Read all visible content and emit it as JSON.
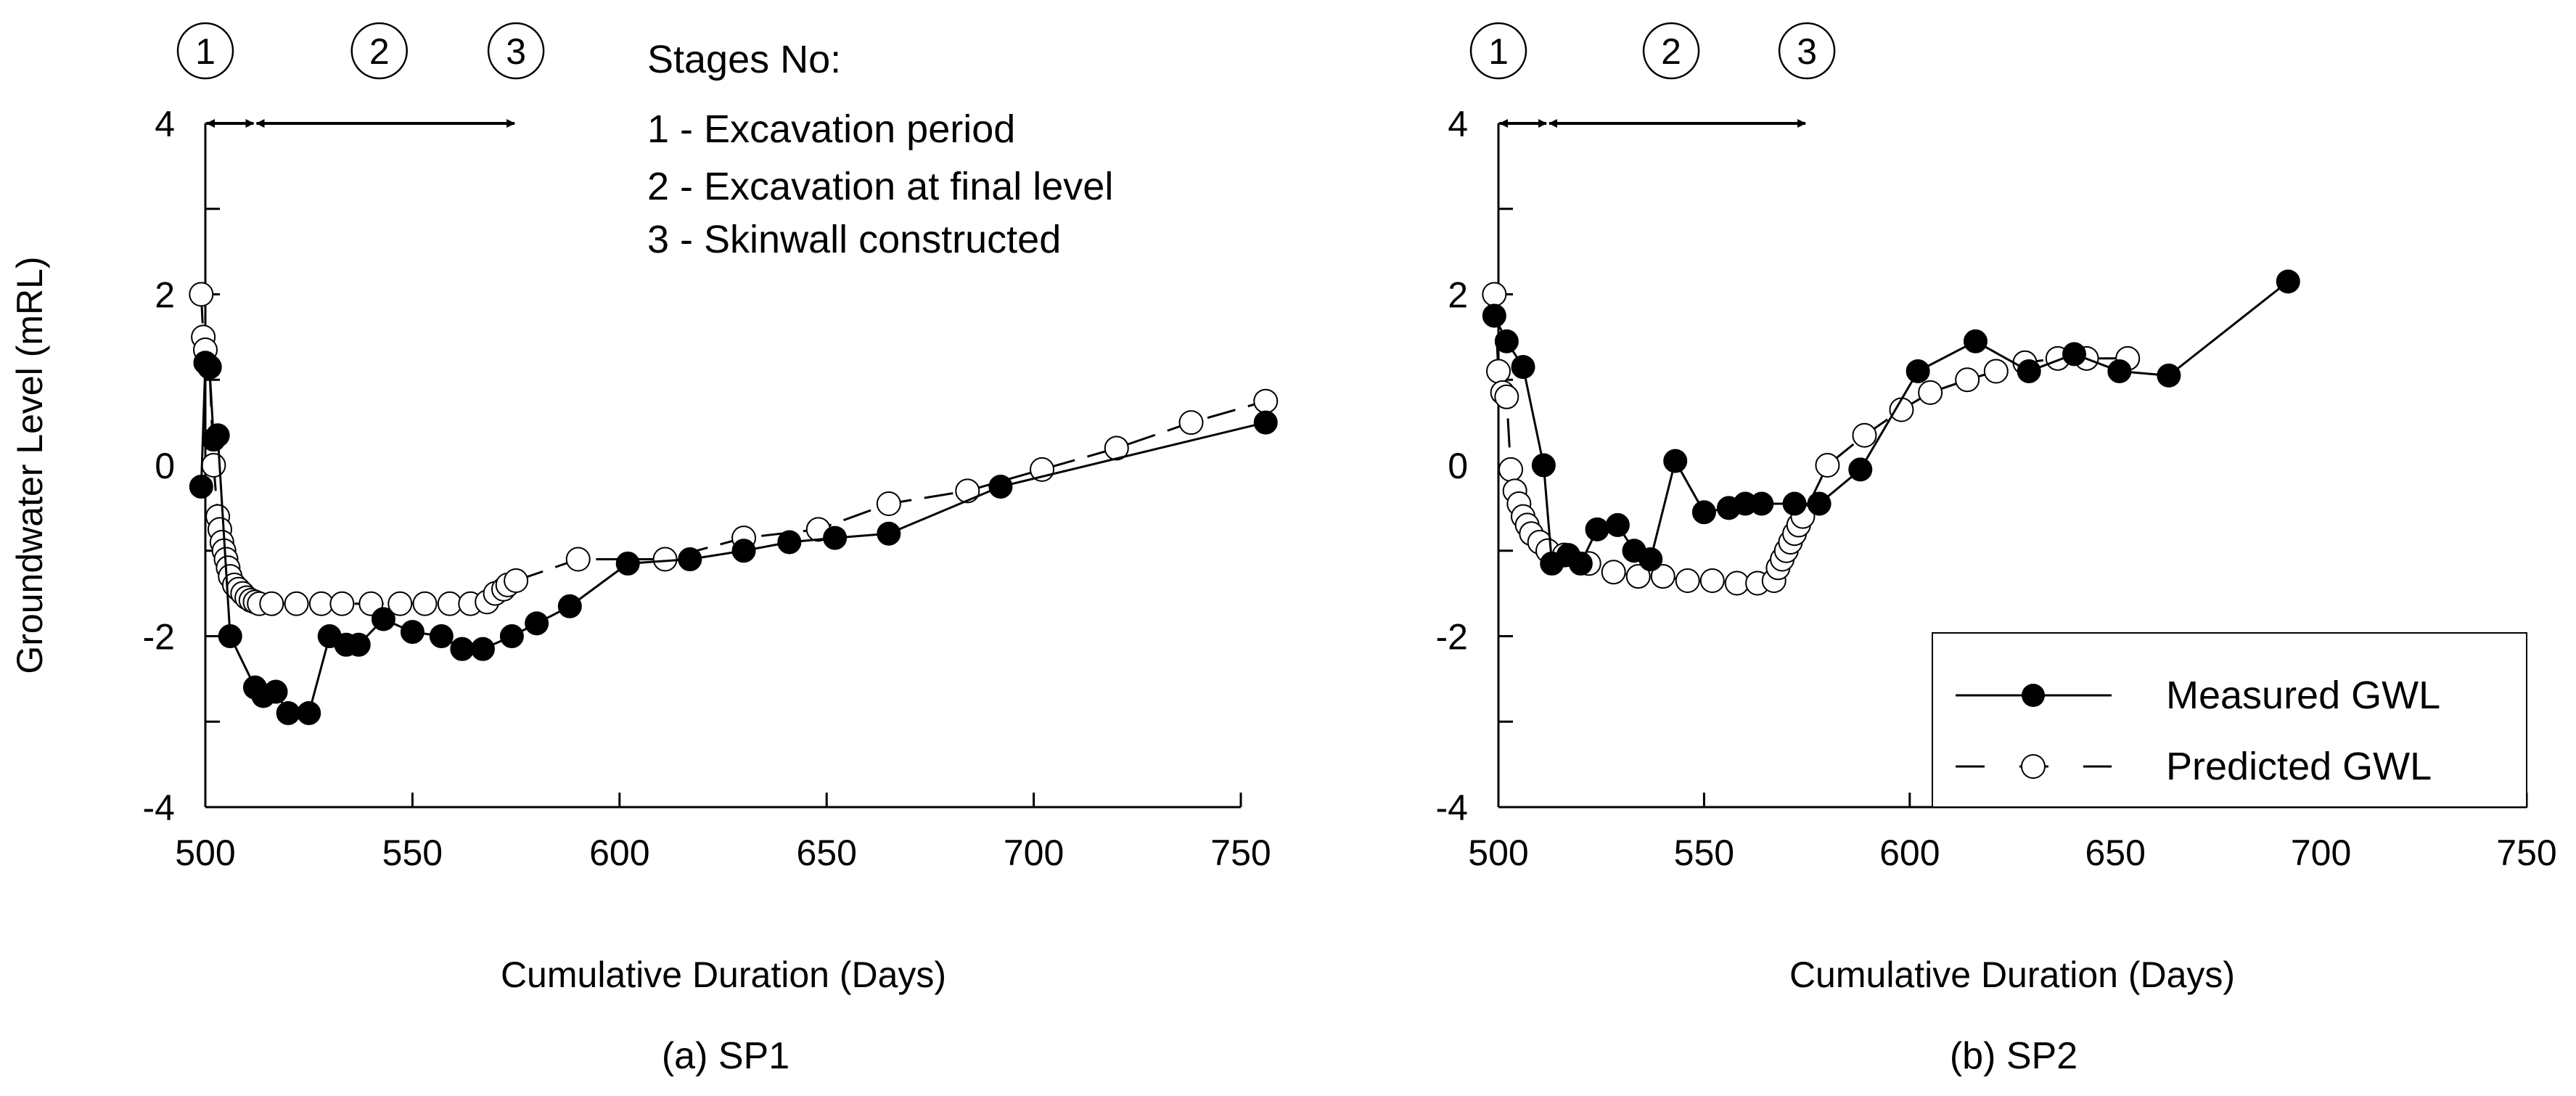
{
  "chart_data": [
    {
      "type": "line",
      "panel_id": "sp1",
      "caption": "(a) SP1",
      "xlabel": "Cumulative Duration (Days)",
      "ylabel": "Groundwater Level (mRL)",
      "xlim": [
        500,
        750
      ],
      "ylim": [
        -4,
        4
      ],
      "xticks": [
        "500",
        "550",
        "600",
        "650",
        "700",
        "750"
      ],
      "yticks": [
        "4",
        "2",
        "0",
        "-2",
        "-4"
      ],
      "stage_markers": [
        {
          "label": "1",
          "day": 500
        },
        {
          "label": "2",
          "day": 542
        },
        {
          "label": "3",
          "day": 575
        }
      ],
      "stage_arrows": [
        {
          "from": 500,
          "to": 512
        },
        {
          "from": 512,
          "to": 575
        }
      ],
      "stages_title": "Stages No:",
      "stages_text": [
        "1 - Excavation period",
        "2 - Excavation at final level",
        "3 - Skinwall constructed"
      ],
      "series": [
        {
          "name": "Measured GWL",
          "marker": "filled-circle",
          "line": "solid",
          "x": [
            499,
            500,
            501,
            502,
            503,
            506,
            512,
            514,
            517,
            520,
            525,
            530,
            534,
            537,
            543,
            550,
            557,
            562,
            567,
            574,
            580,
            588,
            602,
            617,
            630,
            641,
            652,
            665,
            692,
            756
          ],
          "y": [
            -0.25,
            1.2,
            1.15,
            0.3,
            0.35,
            -2.0,
            -2.6,
            -2.7,
            -2.65,
            -2.9,
            -2.9,
            -2.0,
            -2.1,
            -2.1,
            -1.8,
            -1.95,
            -2.0,
            -2.15,
            -2.15,
            -2.0,
            -1.85,
            -1.65,
            -1.15,
            -1.1,
            -1.0,
            -0.9,
            -0.85,
            -0.8,
            -0.25,
            0.5
          ]
        },
        {
          "name": "Predicted GWL",
          "marker": "open-circle",
          "line": "dashed",
          "x": [
            499,
            499.5,
            500,
            501,
            502,
            503,
            503.5,
            504,
            504.5,
            505,
            505.5,
            506,
            507,
            508,
            509,
            510,
            511,
            512,
            513,
            516,
            522,
            528,
            533,
            540,
            547,
            553,
            559,
            564,
            568,
            570,
            572,
            573,
            575,
            590,
            611,
            630,
            648,
            665,
            684,
            702,
            720,
            738,
            756
          ],
          "y": [
            2.0,
            1.5,
            1.35,
            1.15,
            0.0,
            -0.6,
            -0.75,
            -0.9,
            -1.0,
            -1.1,
            -1.2,
            -1.3,
            -1.4,
            -1.45,
            -1.5,
            -1.55,
            -1.58,
            -1.6,
            -1.62,
            -1.62,
            -1.62,
            -1.62,
            -1.62,
            -1.62,
            -1.62,
            -1.62,
            -1.62,
            -1.62,
            -1.6,
            -1.5,
            -1.45,
            -1.4,
            -1.35,
            -1.1,
            -1.1,
            -0.85,
            -0.75,
            -0.45,
            -0.3,
            -0.05,
            0.2,
            0.5,
            0.75
          ]
        }
      ]
    },
    {
      "type": "line",
      "panel_id": "sp2",
      "caption": "(b) SP2",
      "xlabel": "Cumulative Duration (Days)",
      "ylabel": "",
      "xlim": [
        500,
        750
      ],
      "ylim": [
        -4,
        4
      ],
      "xticks": [
        "500",
        "550",
        "600",
        "650",
        "700",
        "750"
      ],
      "yticks": [
        "4",
        "2",
        "0",
        "-2",
        "-4"
      ],
      "stage_markers": [
        {
          "label": "1",
          "day": 500
        },
        {
          "label": "2",
          "day": 542
        },
        {
          "label": "3",
          "day": 575
        }
      ],
      "stage_arrows": [
        {
          "from": 500,
          "to": 512
        },
        {
          "from": 512,
          "to": 575
        }
      ],
      "legend_position": "bottom-right",
      "series": [
        {
          "name": "Measured GWL",
          "marker": "filled-circle",
          "line": "solid",
          "x": [
            499,
            502,
            506,
            511,
            513,
            517,
            520,
            524,
            529,
            533,
            537,
            543,
            550,
            556,
            560,
            564,
            572,
            578,
            588,
            602,
            616,
            629,
            640,
            651,
            663,
            692
          ],
          "y": [
            1.75,
            1.45,
            1.15,
            0.0,
            -1.15,
            -1.05,
            -1.15,
            -0.75,
            -0.7,
            -1.0,
            -1.1,
            0.05,
            -0.55,
            -0.5,
            -0.45,
            -0.45,
            -0.45,
            -0.45,
            -0.05,
            1.1,
            1.45,
            1.1,
            1.3,
            1.1,
            1.05,
            2.15
          ]
        },
        {
          "name": "Predicted GWL",
          "marker": "open-circle",
          "line": "dashed",
          "x": [
            499,
            500,
            501,
            502,
            503,
            504,
            505,
            506,
            507,
            508,
            510,
            512,
            516,
            522,
            528,
            534,
            540,
            546,
            552,
            558,
            563,
            567,
            568,
            569,
            570,
            571,
            572,
            573,
            574,
            580,
            589,
            598,
            605,
            614,
            621,
            628,
            636,
            643,
            653
          ],
          "y": [
            2.0,
            1.1,
            0.85,
            0.8,
            -0.05,
            -0.3,
            -0.45,
            -0.6,
            -0.7,
            -0.8,
            -0.9,
            -1.0,
            -1.05,
            -1.15,
            -1.25,
            -1.3,
            -1.3,
            -1.35,
            -1.35,
            -1.38,
            -1.38,
            -1.35,
            -1.2,
            -1.1,
            -1.0,
            -0.9,
            -0.8,
            -0.7,
            -0.6,
            0.0,
            0.35,
            0.65,
            0.85,
            1.0,
            1.1,
            1.2,
            1.25,
            1.25,
            1.25
          ]
        }
      ]
    }
  ]
}
